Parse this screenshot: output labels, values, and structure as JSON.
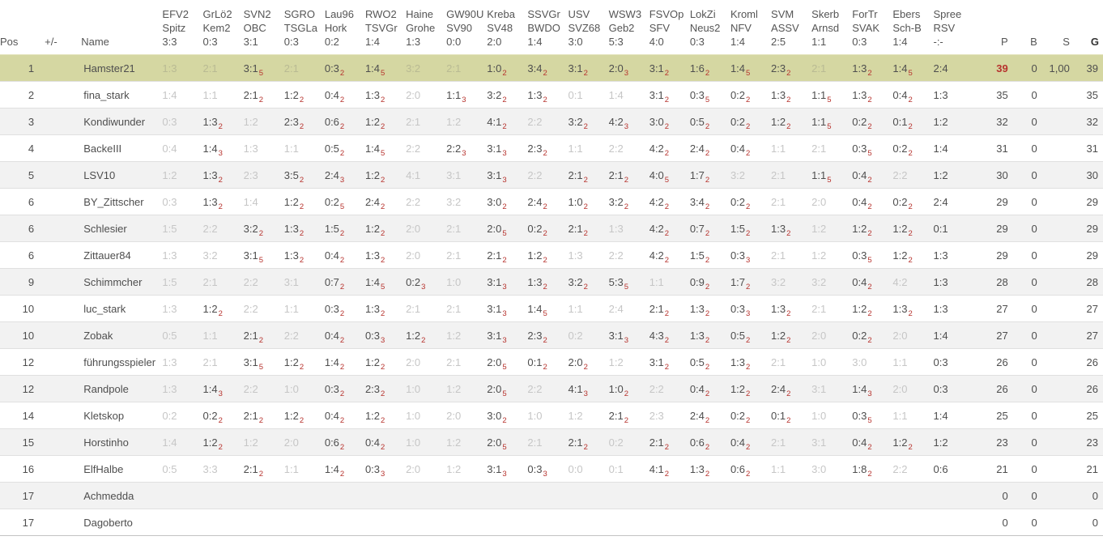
{
  "header": {
    "pos": "Pos",
    "plusminus": "+/-",
    "name": "Name",
    "p": "P",
    "b": "B",
    "s": "S",
    "g": "G"
  },
  "matches": [
    {
      "home": "EFV2",
      "away": "Spitz",
      "result": "3:3"
    },
    {
      "home": "GrLö2",
      "away": "Kem2",
      "result": "0:3"
    },
    {
      "home": "SVN2",
      "away": "OBC",
      "result": "3:1"
    },
    {
      "home": "SGRO",
      "away": "TSGLa",
      "result": "0:3"
    },
    {
      "home": "Lau96",
      "away": "Hork",
      "result": "0:2"
    },
    {
      "home": "RWO2",
      "away": "TSVGr",
      "result": "1:4"
    },
    {
      "home": "Haine",
      "away": "Grohe",
      "result": "1:3"
    },
    {
      "home": "GW90U",
      "away": "SV90",
      "result": "0:0"
    },
    {
      "home": "Kreba",
      "away": "SV48",
      "result": "2:0"
    },
    {
      "home": "SSVGr",
      "away": "BWDO",
      "result": "1:4"
    },
    {
      "home": "USV",
      "away": "SVZ68",
      "result": "3:0"
    },
    {
      "home": "WSW3",
      "away": "Geb2",
      "result": "5:3"
    },
    {
      "home": "FSVOp",
      "away": "SFV",
      "result": "4:0"
    },
    {
      "home": "LokZi",
      "away": "Neus2",
      "result": "0:3"
    },
    {
      "home": "Kroml",
      "away": "NFV",
      "result": "1:4"
    },
    {
      "home": "SVM",
      "away": "ASSV",
      "result": "2:5"
    },
    {
      "home": "Skerb",
      "away": "Arnsd",
      "result": "1:1"
    },
    {
      "home": "ForTr",
      "away": "SVAK",
      "result": "0:3"
    },
    {
      "home": "Ebers",
      "away": "Sch-B",
      "result": "1:4"
    },
    {
      "home": "Spree",
      "away": "RSV",
      "result": "-:-"
    }
  ],
  "rows": [
    {
      "pos": "1",
      "name": "Hamster21",
      "highlight": true,
      "p": "39",
      "p_red": true,
      "b": "0",
      "s": "1,00",
      "g": "39",
      "tips": [
        "1:3|0",
        "2:1|0",
        "3:1|5",
        "2:1|0",
        "0:3|2",
        "1:4|5",
        "3:2|0",
        "2:1|0",
        "1:0|2",
        "3:4|2",
        "3:1|2",
        "2:0|3",
        "3:1|2",
        "1:6|2",
        "1:4|5",
        "2:3|2",
        "2:1|0",
        "1:3|2",
        "1:4|5",
        "2:4|-"
      ]
    },
    {
      "pos": "2",
      "name": "fina_stark",
      "highlight": false,
      "p": "35",
      "p_red": false,
      "b": "0",
      "s": "",
      "g": "35",
      "tips": [
        "1:4|0",
        "1:1|0",
        "2:1|2",
        "1:2|2",
        "0:4|2",
        "1:3|2",
        "2:0|0",
        "1:1|3",
        "3:2|2",
        "1:3|2",
        "0:1|0",
        "1:4|0",
        "3:1|2",
        "0:3|5",
        "0:2|2",
        "1:3|2",
        "1:1|5",
        "1:3|2",
        "0:4|2",
        "1:3|-"
      ]
    },
    {
      "pos": "3",
      "name": "Kondiwunder",
      "highlight": false,
      "p": "32",
      "p_red": false,
      "b": "0",
      "s": "",
      "g": "32",
      "tips": [
        "0:3|0",
        "1:3|2",
        "1:2|0",
        "2:3|2",
        "0:6|2",
        "1:2|2",
        "2:1|0",
        "1:2|0",
        "4:1|2",
        "2:2|0",
        "3:2|2",
        "4:2|3",
        "3:0|2",
        "0:5|2",
        "0:2|2",
        "1:2|2",
        "1:1|5",
        "0:2|2",
        "0:1|2",
        "1:2|-"
      ]
    },
    {
      "pos": "4",
      "name": "BackeIII",
      "highlight": false,
      "p": "31",
      "p_red": false,
      "b": "0",
      "s": "",
      "g": "31",
      "tips": [
        "0:4|0",
        "1:4|3",
        "1:3|0",
        "1:1|0",
        "0:5|2",
        "1:4|5",
        "2:2|0",
        "2:2|3",
        "3:1|3",
        "2:3|2",
        "1:1|0",
        "2:2|0",
        "4:2|2",
        "2:4|2",
        "0:4|2",
        "1:1|0",
        "2:1|0",
        "0:3|5",
        "0:2|2",
        "1:4|-"
      ]
    },
    {
      "pos": "5",
      "name": "LSV10",
      "highlight": false,
      "p": "30",
      "p_red": false,
      "b": "0",
      "s": "",
      "g": "30",
      "tips": [
        "1:2|0",
        "1:3|2",
        "2:3|0",
        "3:5|2",
        "2:4|3",
        "1:2|2",
        "4:1|0",
        "3:1|0",
        "3:1|3",
        "2:2|0",
        "2:1|2",
        "2:1|2",
        "4:0|5",
        "1:7|2",
        "3:2|0",
        "2:1|0",
        "1:1|5",
        "0:4|2",
        "2:2|0",
        "1:2|-"
      ]
    },
    {
      "pos": "6",
      "name": "BY_Zittscher",
      "highlight": false,
      "p": "29",
      "p_red": false,
      "b": "0",
      "s": "",
      "g": "29",
      "tips": [
        "0:3|0",
        "1:3|2",
        "1:4|0",
        "1:2|2",
        "0:2|5",
        "2:4|2",
        "2:2|0",
        "3:2|0",
        "3:0|2",
        "2:4|2",
        "1:0|2",
        "3:2|2",
        "4:2|2",
        "3:4|2",
        "0:2|2",
        "2:1|0",
        "2:0|0",
        "0:4|2",
        "0:2|2",
        "2:4|-"
      ]
    },
    {
      "pos": "6",
      "name": "Schlesier",
      "highlight": false,
      "p": "29",
      "p_red": false,
      "b": "0",
      "s": "",
      "g": "29",
      "tips": [
        "1:5|0",
        "2:2|0",
        "3:2|2",
        "1:3|2",
        "1:5|2",
        "1:2|2",
        "2:0|0",
        "2:1|0",
        "2:0|5",
        "0:2|2",
        "2:1|2",
        "1:3|0",
        "4:2|2",
        "0:7|2",
        "1:5|2",
        "1:3|2",
        "1:2|0",
        "1:2|2",
        "1:2|2",
        "0:1|-"
      ]
    },
    {
      "pos": "6",
      "name": "Zittauer84",
      "highlight": false,
      "p": "29",
      "p_red": false,
      "b": "0",
      "s": "",
      "g": "29",
      "tips": [
        "1:3|0",
        "3:2|0",
        "3:1|5",
        "1:3|2",
        "0:4|2",
        "1:3|2",
        "2:0|0",
        "2:1|0",
        "2:1|2",
        "1:2|2",
        "1:3|0",
        "2:2|0",
        "4:2|2",
        "1:5|2",
        "0:3|3",
        "2:1|0",
        "1:2|0",
        "0:3|5",
        "1:2|2",
        "1:3|-"
      ]
    },
    {
      "pos": "9",
      "name": "Schimmcher",
      "highlight": false,
      "p": "28",
      "p_red": false,
      "b": "0",
      "s": "",
      "g": "28",
      "tips": [
        "1:5|0",
        "2:1|0",
        "2:2|0",
        "3:1|0",
        "0:7|2",
        "1:4|5",
        "0:2|3",
        "1:0|0",
        "3:1|3",
        "1:3|2",
        "3:2|2",
        "5:3|5",
        "1:1|0",
        "0:9|2",
        "1:7|2",
        "3:2|0",
        "3:2|0",
        "0:4|2",
        "4:2|0",
        "1:3|-"
      ]
    },
    {
      "pos": "10",
      "name": "luc_stark",
      "highlight": false,
      "p": "27",
      "p_red": false,
      "b": "0",
      "s": "",
      "g": "27",
      "tips": [
        "1:3|0",
        "1:2|2",
        "2:2|0",
        "1:1|0",
        "0:3|2",
        "1:3|2",
        "2:1|0",
        "2:1|0",
        "3:1|3",
        "1:4|5",
        "1:1|0",
        "2:4|0",
        "2:1|2",
        "1:3|2",
        "0:3|3",
        "1:3|2",
        "2:1|0",
        "1:2|2",
        "1:3|2",
        "1:3|-"
      ]
    },
    {
      "pos": "10",
      "name": "Zobak",
      "highlight": false,
      "p": "27",
      "p_red": false,
      "b": "0",
      "s": "",
      "g": "27",
      "tips": [
        "0:5|0",
        "1:1|0",
        "2:1|2",
        "2:2|0",
        "0:4|2",
        "0:3|3",
        "1:2|2",
        "1:2|0",
        "3:1|3",
        "2:3|2",
        "0:2|0",
        "3:1|3",
        "4:3|2",
        "1:3|2",
        "0:5|2",
        "1:2|2",
        "2:0|0",
        "0:2|2",
        "2:0|0",
        "1:4|-"
      ]
    },
    {
      "pos": "12",
      "name": "führungsspieler",
      "highlight": false,
      "p": "26",
      "p_red": false,
      "b": "0",
      "s": "",
      "g": "26",
      "tips": [
        "1:3|0",
        "2:1|0",
        "3:1|5",
        "1:2|2",
        "1:4|2",
        "1:2|2",
        "2:0|0",
        "2:1|0",
        "2:0|5",
        "0:1|2",
        "2:0|2",
        "1:2|0",
        "3:1|2",
        "0:5|2",
        "1:3|2",
        "2:1|0",
        "1:0|0",
        "3:0|0",
        "1:1|0",
        "0:3|-"
      ]
    },
    {
      "pos": "12",
      "name": "Randpole",
      "highlight": false,
      "p": "26",
      "p_red": false,
      "b": "0",
      "s": "",
      "g": "26",
      "tips": [
        "1:3|0",
        "1:4|3",
        "2:2|0",
        "1:0|0",
        "0:3|2",
        "2:3|2",
        "1:0|0",
        "1:2|0",
        "2:0|5",
        "2:2|0",
        "4:1|3",
        "1:0|2",
        "2:2|0",
        "0:4|2",
        "1:2|2",
        "2:4|2",
        "3:1|0",
        "1:4|3",
        "2:0|0",
        "0:3|-"
      ]
    },
    {
      "pos": "14",
      "name": "Kletskop",
      "highlight": false,
      "p": "25",
      "p_red": false,
      "b": "0",
      "s": "",
      "g": "25",
      "tips": [
        "0:2|0",
        "0:2|2",
        "2:1|2",
        "1:2|2",
        "0:4|2",
        "1:2|2",
        "1:0|0",
        "2:0|0",
        "3:0|2",
        "1:0|0",
        "1:2|0",
        "2:1|2",
        "2:3|0",
        "2:4|2",
        "0:2|2",
        "0:1|2",
        "1:0|0",
        "0:3|5",
        "1:1|0",
        "1:4|-"
      ]
    },
    {
      "pos": "15",
      "name": "Horstinho",
      "highlight": false,
      "p": "23",
      "p_red": false,
      "b": "0",
      "s": "",
      "g": "23",
      "tips": [
        "1:4|0",
        "1:2|2",
        "1:2|0",
        "2:0|0",
        "0:6|2",
        "0:4|2",
        "1:0|0",
        "1:2|0",
        "2:0|5",
        "2:1|0",
        "2:1|2",
        "0:2|0",
        "2:1|2",
        "0:6|2",
        "0:4|2",
        "2:1|0",
        "3:1|0",
        "0:4|2",
        "1:2|2",
        "1:2|-"
      ]
    },
    {
      "pos": "16",
      "name": "ElfHalbe",
      "highlight": false,
      "p": "21",
      "p_red": false,
      "b": "0",
      "s": "",
      "g": "21",
      "tips": [
        "0:5|0",
        "3:3|0",
        "2:1|2",
        "1:1|0",
        "1:4|2",
        "0:3|3",
        "2:0|0",
        "1:2|0",
        "3:1|3",
        "0:3|3",
        "0:0|0",
        "0:1|0",
        "4:1|2",
        "1:3|2",
        "0:6|2",
        "1:1|0",
        "3:0|0",
        "1:8|2",
        "2:2|0",
        "0:6|-"
      ]
    },
    {
      "pos": "17",
      "name": "Achmedda",
      "highlight": false,
      "p": "0",
      "p_red": false,
      "b": "0",
      "s": "",
      "g": "0",
      "tips": [
        "",
        "",
        "",
        "",
        "",
        "",
        "",
        "",
        "",
        "",
        "",
        "",
        "",
        "",
        "",
        "",
        "",
        "",
        "",
        ""
      ]
    },
    {
      "pos": "17",
      "name": "Dagoberto",
      "highlight": false,
      "p": "0",
      "p_red": false,
      "b": "0",
      "s": "",
      "g": "0",
      "tips": [
        "",
        "",
        "",
        "",
        "",
        "",
        "",
        "",
        "",
        "",
        "",
        "",
        "",
        "",
        "",
        "",
        "",
        "",
        "",
        ""
      ]
    }
  ],
  "colors": {
    "highlight_row": "#d5d7a2",
    "stripe_row": "#f2f2f2",
    "points_red": "#b7332e",
    "no_points_gray": "#c6c6c6",
    "text": "#4e4e4e"
  }
}
